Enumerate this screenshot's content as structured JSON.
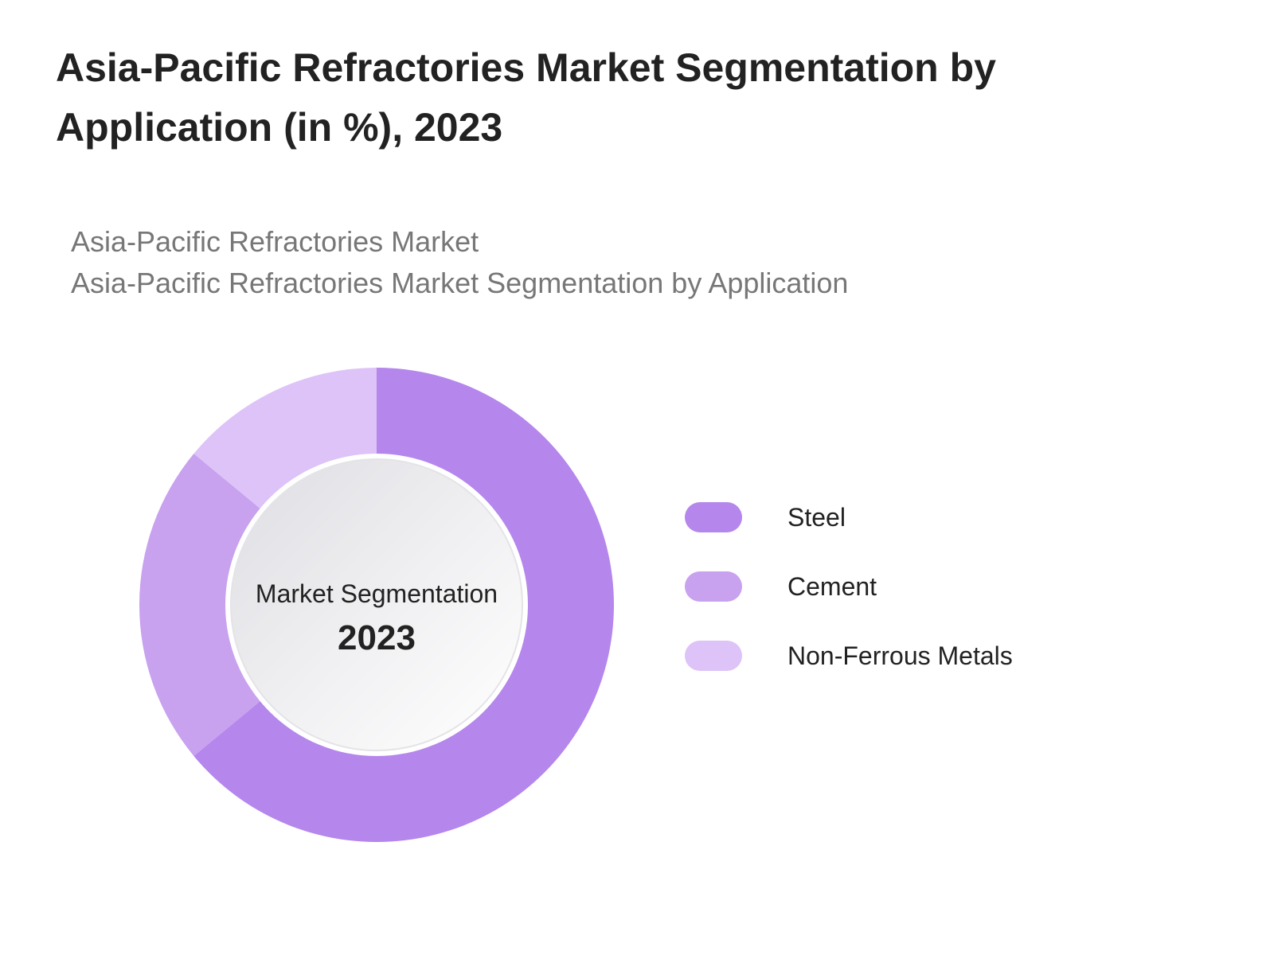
{
  "title": "Asia-Pacific Refractories Market Segmentation by Application (in %), 2023",
  "breadcrumb": {
    "line1": "Asia-Pacific Refractories Market",
    "line2": "Asia-Pacific Refractories Market Segmentation by Application"
  },
  "center": {
    "label": "Market Segmentation",
    "year": "2023"
  },
  "chart_data": {
    "type": "pie",
    "variant": "donut",
    "legend_position": "right",
    "unit": "%",
    "categories": [
      "Steel",
      "Cement",
      "Non-Ferrous Metals"
    ],
    "values": [
      64,
      22,
      14
    ],
    "colors": [
      "#b586ec",
      "#c8a1ef",
      "#ddc3f7"
    ]
  }
}
